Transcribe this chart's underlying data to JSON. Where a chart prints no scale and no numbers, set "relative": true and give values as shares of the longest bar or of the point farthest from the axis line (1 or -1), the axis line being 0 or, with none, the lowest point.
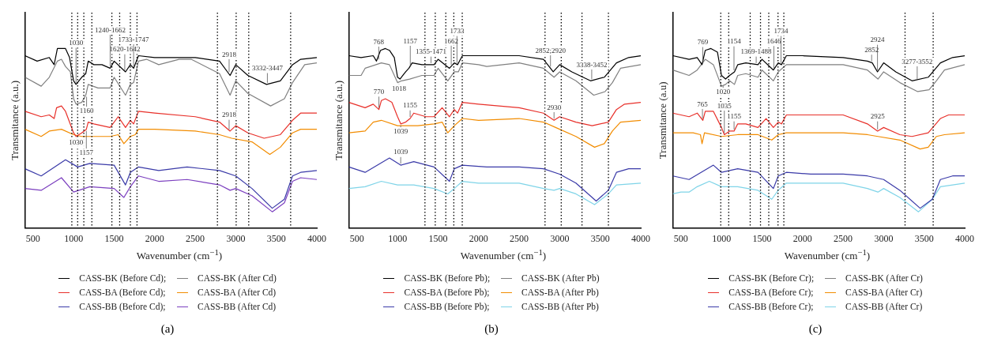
{
  "chart_data": [
    {
      "type": "line",
      "title": "(a)",
      "xlabel": "Wavenumber (cm$^{−1}$)",
      "ylabel": "Transmitance (a.u.)",
      "relative": true,
      "xlim": [
        400,
        4000
      ],
      "xticks": [
        500,
        1000,
        1500,
        2000,
        2500,
        3000,
        3500,
        4000
      ],
      "grid": false,
      "legend": "bottom",
      "marker": "none",
      "line_style": "solid",
      "series": [
        {
          "name": "CASS-BK (Before Cd);",
          "color": "#000000",
          "x": [
            400,
            550,
            700,
            760,
            800,
            850,
            900,
            950,
            1000,
            1030,
            1100,
            1150,
            1180,
            1250,
            1350,
            1450,
            1500,
            1640,
            1700,
            1740,
            1800,
            2000,
            2500,
            2800,
            2930,
            3000,
            3150,
            3380,
            3550,
            3700,
            3800,
            4000
          ],
          "values": [
            0.96,
            0.93,
            0.95,
            0.91,
            1.0,
            1.0,
            1.0,
            0.95,
            0.82,
            0.8,
            0.84,
            0.86,
            0.93,
            0.91,
            0.91,
            0.89,
            0.93,
            0.87,
            0.91,
            0.89,
            0.96,
            0.95,
            0.95,
            0.93,
            0.85,
            0.91,
            0.85,
            0.8,
            0.82,
            0.91,
            0.94,
            0.95
          ]
        },
        {
          "name": "CASS-BK (After Cd)",
          "color": "#808080",
          "x": [
            400,
            600,
            700,
            800,
            850,
            900,
            960,
            1000,
            1030,
            1100,
            1150,
            1180,
            1300,
            1450,
            1500,
            1640,
            1700,
            1740,
            1800,
            1900,
            2050,
            2300,
            2450,
            2800,
            2930,
            3000,
            3150,
            3430,
            3600,
            3700,
            3850,
            4000
          ],
          "values": [
            0.84,
            0.79,
            0.84,
            0.93,
            0.94,
            0.9,
            0.87,
            0.72,
            0.69,
            0.7,
            0.74,
            0.8,
            0.78,
            0.78,
            0.84,
            0.74,
            0.8,
            0.81,
            0.93,
            0.94,
            0.91,
            0.94,
            0.94,
            0.86,
            0.74,
            0.82,
            0.75,
            0.68,
            0.72,
            0.81,
            0.91,
            0.92
          ]
        },
        {
          "name": "CASS-BA (Before Cd);",
          "color": "#e8302a",
          "x": [
            400,
            600,
            700,
            760,
            790,
            850,
            900,
            1000,
            1030,
            1100,
            1157,
            1180,
            1250,
            1350,
            1450,
            1550,
            1640,
            1700,
            1740,
            1800,
            2000,
            2500,
            2800,
            2930,
            3000,
            3150,
            3350,
            3550,
            3700,
            3800,
            4000
          ],
          "values": [
            0.65,
            0.62,
            0.63,
            0.61,
            0.67,
            0.68,
            0.65,
            0.53,
            0.51,
            0.53,
            0.55,
            0.59,
            0.58,
            0.57,
            0.56,
            0.62,
            0.56,
            0.6,
            0.58,
            0.65,
            0.64,
            0.62,
            0.59,
            0.54,
            0.57,
            0.53,
            0.5,
            0.52,
            0.6,
            0.64,
            0.64
          ]
        },
        {
          "name": "CASS-BA (After Cd)",
          "color": "#f28c00",
          "x": [
            400,
            600,
            700,
            850,
            1000,
            1100,
            1250,
            1450,
            1550,
            1620,
            1700,
            1760,
            1800,
            2000,
            2500,
            2800,
            2950,
            3200,
            3420,
            3550,
            3700,
            3800,
            4000
          ],
          "values": [
            0.55,
            0.51,
            0.54,
            0.55,
            0.52,
            0.51,
            0.51,
            0.51,
            0.52,
            0.47,
            0.51,
            0.52,
            0.55,
            0.55,
            0.54,
            0.52,
            0.5,
            0.48,
            0.41,
            0.45,
            0.53,
            0.55,
            0.55
          ]
        },
        {
          "name": "CASS-BB (Before Cd);",
          "color": "#3a3aa8",
          "x": [
            400,
            600,
            900,
            1050,
            1200,
            1500,
            1640,
            1700,
            1800,
            2050,
            2400,
            2800,
            3000,
            3200,
            3450,
            3600,
            3700,
            3800,
            4000
          ],
          "values": [
            0.33,
            0.29,
            0.38,
            0.34,
            0.36,
            0.35,
            0.24,
            0.31,
            0.34,
            0.32,
            0.34,
            0.32,
            0.29,
            0.22,
            0.11,
            0.16,
            0.29,
            0.31,
            0.32
          ]
        },
        {
          "name": "CASS-BB (After Cd)",
          "color": "#7b3fbf",
          "x": [
            400,
            600,
            850,
            1000,
            1200,
            1500,
            1620,
            1700,
            1800,
            2050,
            2400,
            2800,
            2930,
            3000,
            3200,
            3450,
            3600,
            3700,
            3800,
            4000
          ],
          "values": [
            0.22,
            0.21,
            0.28,
            0.2,
            0.23,
            0.22,
            0.17,
            0.23,
            0.29,
            0.26,
            0.27,
            0.24,
            0.21,
            0.22,
            0.18,
            0.09,
            0.14,
            0.26,
            0.28,
            0.27
          ]
        }
      ],
      "ref_lines": [
        {
          "axis": "x",
          "value": 978,
          "line_style": "dotted"
        },
        {
          "axis": "x",
          "value": 1050,
          "line_style": "dotted"
        },
        {
          "axis": "x",
          "value": 1126,
          "line_style": "dotted"
        },
        {
          "axis": "x",
          "value": 1225,
          "line_style": "dotted"
        },
        {
          "axis": "x",
          "value": 1472,
          "line_style": "dotted"
        },
        {
          "axis": "x",
          "value": 1568,
          "line_style": "dotted"
        },
        {
          "axis": "x",
          "value": 1700,
          "line_style": "dotted"
        },
        {
          "axis": "x",
          "value": 1782,
          "line_style": "dotted"
        },
        {
          "axis": "x",
          "value": 2774,
          "line_style": "dotted"
        },
        {
          "axis": "x",
          "value": 3005,
          "line_style": "dotted"
        },
        {
          "axis": "x",
          "value": 3160,
          "line_style": "dotted"
        },
        {
          "axis": "x",
          "value": 3677,
          "line_style": "dotted"
        }
      ],
      "annotations": [
        {
          "text": "1620-1642",
          "x": 1631,
          "y": 0.87
        },
        {
          "text": "1733-1747",
          "x": 1740,
          "y": 0.89
        },
        {
          "text": "1240-1662",
          "x": 1451,
          "y": 0.89
        },
        {
          "text": "1030",
          "x": 1030,
          "y": 0.8
        },
        {
          "text": "2918",
          "x": 2918,
          "y": 0.86
        },
        {
          "text": "3332-3447",
          "x": 3390,
          "y": 0.8
        },
        {
          "text": "1160",
          "x": 1160,
          "y": 0.74
        },
        {
          "text": "2918",
          "x": 2918,
          "y": 0.54
        },
        {
          "text": "1030",
          "x": 1030,
          "y": 0.51
        },
        {
          "text": "1157",
          "x": 1157,
          "y": 0.55
        }
      ]
    },
    {
      "type": "line",
      "title": "(b)",
      "xlabel": "Wavenumber (cm$^{−1}$)",
      "ylabel": "Transmitance (a.u.)",
      "relative": true,
      "xlim": [
        400,
        4000
      ],
      "xticks": [
        500,
        1000,
        1500,
        2000,
        2500,
        3000,
        3500,
        4000
      ],
      "grid": false,
      "legend": "bottom",
      "marker": "none",
      "line_style": "solid",
      "series": [
        {
          "name": "CASS-BK (Before Pb);",
          "color": "#000000",
          "x": [
            400,
            550,
            700,
            740,
            790,
            850,
            900,
            960,
            1000,
            1030,
            1100,
            1140,
            1180,
            1300,
            1450,
            1500,
            1640,
            1700,
            1740,
            1800,
            2000,
            2500,
            2800,
            2920,
            3000,
            3150,
            3380,
            3550,
            3700,
            3850,
            4000
          ],
          "values": [
            0.96,
            0.95,
            0.96,
            0.93,
            0.99,
            1.0,
            0.99,
            0.95,
            0.84,
            0.83,
            0.87,
            0.89,
            0.92,
            0.91,
            0.91,
            0.94,
            0.89,
            0.92,
            0.91,
            0.96,
            0.96,
            0.96,
            0.94,
            0.87,
            0.91,
            0.87,
            0.82,
            0.84,
            0.92,
            0.95,
            0.96
          ]
        },
        {
          "name": "CASS-BK (After Pb)",
          "color": "#808080",
          "x": [
            400,
            550,
            600,
            800,
            900,
            1000,
            1050,
            1150,
            1300,
            1450,
            1500,
            1620,
            1700,
            1750,
            1800,
            2000,
            2100,
            2500,
            2800,
            2930,
            3000,
            3200,
            3420,
            3560,
            3650,
            3750,
            4000
          ],
          "values": [
            0.85,
            0.85,
            0.89,
            0.92,
            0.91,
            0.81,
            0.82,
            0.83,
            0.85,
            0.85,
            0.89,
            0.82,
            0.87,
            0.87,
            0.92,
            0.91,
            0.9,
            0.92,
            0.89,
            0.84,
            0.87,
            0.82,
            0.74,
            0.76,
            0.81,
            0.89,
            0.91
          ]
        },
        {
          "name": "CASS-BA (Before Pb);",
          "color": "#e8302a",
          "x": [
            400,
            600,
            700,
            770,
            800,
            850,
            930,
            1000,
            1039,
            1100,
            1155,
            1200,
            1350,
            1450,
            1550,
            1640,
            1700,
            1740,
            1800,
            2000,
            2500,
            2800,
            2930,
            3000,
            3200,
            3400,
            3600,
            3700,
            3800,
            4000
          ],
          "values": [
            0.7,
            0.67,
            0.69,
            0.66,
            0.71,
            0.72,
            0.7,
            0.62,
            0.58,
            0.59,
            0.61,
            0.64,
            0.62,
            0.62,
            0.67,
            0.62,
            0.66,
            0.64,
            0.7,
            0.69,
            0.67,
            0.64,
            0.6,
            0.62,
            0.59,
            0.57,
            0.59,
            0.66,
            0.69,
            0.7
          ]
        },
        {
          "name": "CASS-BA (After Pb)",
          "color": "#f28c00",
          "x": [
            400,
            600,
            700,
            800,
            1000,
            1250,
            1450,
            1550,
            1620,
            1700,
            1800,
            2000,
            2500,
            2800,
            2950,
            3200,
            3430,
            3550,
            3650,
            3750,
            4000
          ],
          "values": [
            0.53,
            0.54,
            0.59,
            0.6,
            0.57,
            0.57,
            0.58,
            0.59,
            0.53,
            0.57,
            0.61,
            0.6,
            0.61,
            0.59,
            0.56,
            0.51,
            0.45,
            0.47,
            0.54,
            0.59,
            0.6
          ]
        },
        {
          "name": "CASS-BB (Before Pb);",
          "color": "#3a3aa8",
          "x": [
            400,
            600,
            900,
            1039,
            1200,
            1450,
            1640,
            1700,
            1800,
            2100,
            2500,
            2800,
            3000,
            3200,
            3450,
            3600,
            3700,
            3850,
            4000
          ],
          "values": [
            0.34,
            0.31,
            0.39,
            0.35,
            0.37,
            0.34,
            0.26,
            0.33,
            0.35,
            0.34,
            0.34,
            0.33,
            0.3,
            0.25,
            0.15,
            0.21,
            0.31,
            0.33,
            0.33
          ]
        },
        {
          "name": "CASS-BB (After Pb)",
          "color": "#7fd4e8",
          "x": [
            400,
            600,
            800,
            1000,
            1200,
            1450,
            1620,
            1700,
            1800,
            2000,
            2500,
            2800,
            2930,
            3000,
            3200,
            3430,
            3600,
            3700,
            4000
          ],
          "values": [
            0.22,
            0.23,
            0.26,
            0.24,
            0.24,
            0.22,
            0.19,
            0.22,
            0.26,
            0.25,
            0.25,
            0.22,
            0.21,
            0.22,
            0.19,
            0.13,
            0.19,
            0.24,
            0.25
          ]
        }
      ],
      "ref_lines": [
        {
          "axis": "x",
          "value": 1338,
          "line_style": "dotted"
        },
        {
          "axis": "x",
          "value": 1465,
          "line_style": "dotted"
        },
        {
          "axis": "x",
          "value": 1595,
          "line_style": "dotted"
        },
        {
          "axis": "x",
          "value": 1694,
          "line_style": "dotted"
        },
        {
          "axis": "x",
          "value": 1798,
          "line_style": "dotted"
        },
        {
          "axis": "x",
          "value": 2819,
          "line_style": "dotted"
        },
        {
          "axis": "x",
          "value": 3019,
          "line_style": "dotted"
        },
        {
          "axis": "x",
          "value": 3275,
          "line_style": "dotted"
        },
        {
          "axis": "x",
          "value": 3601,
          "line_style": "dotted"
        }
      ],
      "annotations": [
        {
          "text": "768",
          "x": 768,
          "y": 0.93
        },
        {
          "text": "1355-1471",
          "x": 1413,
          "y": 0.91
        },
        {
          "text": "1662",
          "x": 1662,
          "y": 0.9
        },
        {
          "text": "1733",
          "x": 1733,
          "y": 0.91
        },
        {
          "text": "1157",
          "x": 1157,
          "y": 0.89
        },
        {
          "text": "2852;2920",
          "x": 2886,
          "y": 0.89
        },
        {
          "text": "3338-3452",
          "x": 3395,
          "y": 0.82
        },
        {
          "text": "1018",
          "x": 1018,
          "y": 0.81
        },
        {
          "text": "1039",
          "x": 1039,
          "y": 0.58
        },
        {
          "text": "1155",
          "x": 1155,
          "y": 0.61
        },
        {
          "text": "770",
          "x": 770,
          "y": 0.66
        },
        {
          "text": "2930",
          "x": 2930,
          "y": 0.6
        },
        {
          "text": "1039",
          "x": 1039,
          "y": 0.35
        }
      ]
    },
    {
      "type": "line",
      "title": "(c)",
      "xlabel": "Wavenumber (cm$^{−1}$)",
      "ylabel": "Transmitance (a.u)",
      "relative": true,
      "xlim": [
        400,
        4000
      ],
      "xticks": [
        500,
        1000,
        1500,
        2000,
        2500,
        3000,
        3500,
        4000
      ],
      "grid": false,
      "legend": "bottom",
      "marker": "none",
      "line_style": "solid",
      "series": [
        {
          "name": "CASS-BK (Before Cr);",
          "color": "#000000",
          "x": [
            400,
            600,
            700,
            760,
            800,
            870,
            950,
            1000,
            1050,
            1100,
            1160,
            1200,
            1300,
            1450,
            1500,
            1640,
            1700,
            1740,
            1800,
            2000,
            2500,
            2800,
            2860,
            2924,
            3000,
            3150,
            3350,
            3550,
            3700,
            3850,
            4000
          ],
          "values": [
            0.96,
            0.94,
            0.95,
            0.91,
            0.99,
            1.0,
            0.98,
            0.85,
            0.83,
            0.85,
            0.87,
            0.91,
            0.92,
            0.91,
            0.94,
            0.88,
            0.92,
            0.91,
            0.96,
            0.96,
            0.95,
            0.93,
            0.92,
            0.87,
            0.92,
            0.87,
            0.82,
            0.84,
            0.92,
            0.95,
            0.96
          ]
        },
        {
          "name": "CASS-BK (After Cr)",
          "color": "#808080",
          "x": [
            400,
            600,
            700,
            800,
            900,
            1000,
            1050,
            1100,
            1160,
            1200,
            1300,
            1450,
            1500,
            1640,
            1700,
            1800,
            2000,
            2500,
            2800,
            2930,
            3000,
            3200,
            3420,
            3560,
            3650,
            3750,
            4000
          ],
          "values": [
            0.88,
            0.85,
            0.88,
            0.94,
            0.91,
            0.79,
            0.8,
            0.82,
            0.8,
            0.85,
            0.86,
            0.84,
            0.88,
            0.82,
            0.87,
            0.91,
            0.91,
            0.91,
            0.88,
            0.83,
            0.87,
            0.81,
            0.76,
            0.77,
            0.82,
            0.88,
            0.91
          ]
        },
        {
          "name": "CASS-BA (Before Cr);",
          "color": "#e8302a",
          "x": [
            400,
            600,
            700,
            770,
            800,
            900,
            1000,
            1035,
            1100,
            1155,
            1200,
            1300,
            1450,
            1550,
            1640,
            1700,
            1740,
            1800,
            2000,
            2500,
            2800,
            2925,
            3000,
            3200,
            3350,
            3550,
            3700,
            3800,
            4000
          ],
          "values": [
            0.64,
            0.62,
            0.64,
            0.6,
            0.65,
            0.65,
            0.56,
            0.52,
            0.54,
            0.54,
            0.58,
            0.58,
            0.56,
            0.61,
            0.56,
            0.59,
            0.58,
            0.63,
            0.63,
            0.63,
            0.58,
            0.54,
            0.56,
            0.52,
            0.51,
            0.53,
            0.61,
            0.63,
            0.63
          ]
        },
        {
          "name": "CASS-BA (After Cr)",
          "color": "#f28c00",
          "x": [
            400,
            650,
            740,
            760,
            790,
            1000,
            1200,
            1450,
            1620,
            1700,
            1800,
            2000,
            2500,
            2800,
            2930,
            3200,
            3450,
            3550,
            3650,
            3750,
            4000
          ],
          "values": [
            0.53,
            0.53,
            0.52,
            0.47,
            0.53,
            0.51,
            0.52,
            0.52,
            0.49,
            0.52,
            0.53,
            0.53,
            0.53,
            0.52,
            0.51,
            0.49,
            0.44,
            0.45,
            0.51,
            0.52,
            0.53
          ]
        },
        {
          "name": "CASS-BB (Before Cr);",
          "color": "#3a3aa8",
          "x": [
            400,
            600,
            900,
            1000,
            1200,
            1450,
            1640,
            1700,
            1800,
            2100,
            2500,
            2800,
            3000,
            3200,
            3450,
            3600,
            3700,
            3850,
            4000
          ],
          "values": [
            0.29,
            0.27,
            0.35,
            0.31,
            0.33,
            0.31,
            0.22,
            0.29,
            0.31,
            0.3,
            0.3,
            0.29,
            0.27,
            0.21,
            0.11,
            0.16,
            0.27,
            0.29,
            0.29
          ]
        },
        {
          "name": "CASS-BB (After Cr)",
          "color": "#7fd4e8",
          "x": [
            400,
            500,
            600,
            700,
            850,
            1000,
            1200,
            1450,
            1620,
            1700,
            1800,
            2000,
            2500,
            2800,
            2930,
            3000,
            3200,
            3430,
            3600,
            3700,
            4000
          ],
          "values": [
            0.19,
            0.2,
            0.2,
            0.23,
            0.26,
            0.23,
            0.23,
            0.21,
            0.16,
            0.21,
            0.25,
            0.25,
            0.25,
            0.22,
            0.2,
            0.22,
            0.17,
            0.09,
            0.16,
            0.23,
            0.25
          ]
        }
      ],
      "ref_lines": [
        {
          "axis": "x",
          "value": 991,
          "line_style": "dotted"
        },
        {
          "axis": "x",
          "value": 1089,
          "line_style": "dotted"
        },
        {
          "axis": "x",
          "value": 1354,
          "line_style": "dotted"
        },
        {
          "axis": "x",
          "value": 1481,
          "line_style": "dotted"
        },
        {
          "axis": "x",
          "value": 1583,
          "line_style": "dotted"
        },
        {
          "axis": "x",
          "value": 1697,
          "line_style": "dotted"
        },
        {
          "axis": "x",
          "value": 1769,
          "line_style": "dotted"
        },
        {
          "axis": "x",
          "value": 3264,
          "line_style": "dotted"
        },
        {
          "axis": "x",
          "value": 3611,
          "line_style": "dotted"
        }
      ],
      "annotations": [
        {
          "text": "1369-1488",
          "x": 1428,
          "y": 0.91
        },
        {
          "text": "1646",
          "x": 1646,
          "y": 0.88
        },
        {
          "text": "1734",
          "x": 1734,
          "y": 0.91
        },
        {
          "text": "1154",
          "x": 1154,
          "y": 0.87
        },
        {
          "text": "2852",
          "x": 2852,
          "y": 0.92
        },
        {
          "text": "2924",
          "x": 2924,
          "y": 0.87
        },
        {
          "text": "3277-3552",
          "x": 3414,
          "y": 0.82
        },
        {
          "text": "769",
          "x": 769,
          "y": 0.91
        },
        {
          "text": "1020",
          "x": 1020,
          "y": 0.8
        },
        {
          "text": "765",
          "x": 765,
          "y": 0.6
        },
        {
          "text": "1035",
          "x": 1035,
          "y": 0.52
        },
        {
          "text": "1155",
          "x": 1155,
          "y": 0.54
        },
        {
          "text": "2925",
          "x": 2925,
          "y": 0.54
        }
      ]
    }
  ]
}
